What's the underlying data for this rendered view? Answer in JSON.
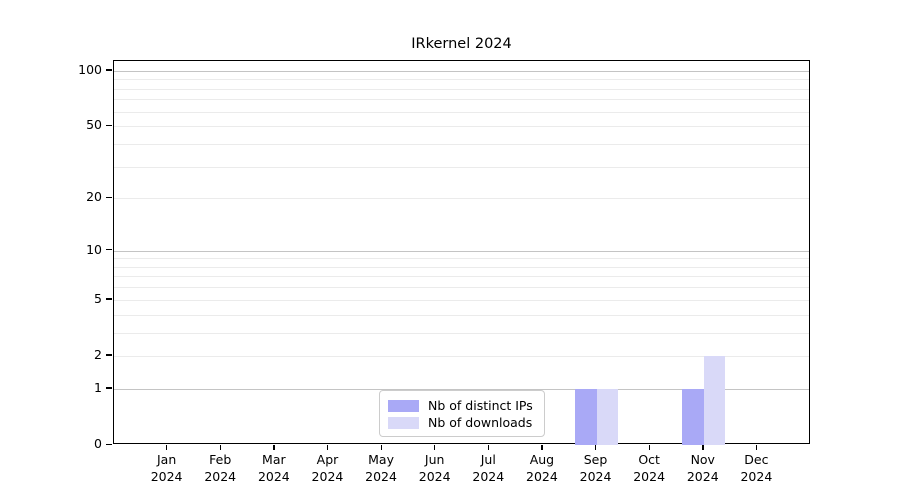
{
  "title": "IRkernel 2024",
  "chart_data": {
    "type": "bar",
    "title": "IRkernel 2024",
    "xlabel": "",
    "ylabel": "",
    "year": "2024",
    "categories": [
      "Jan",
      "Feb",
      "Mar",
      "Apr",
      "May",
      "Jun",
      "Jul",
      "Aug",
      "Sep",
      "Oct",
      "Nov",
      "Dec"
    ],
    "series": [
      {
        "name": "Nb of distinct IPs",
        "color": "#a9a9f6",
        "values": [
          0,
          0,
          0,
          0,
          0,
          0,
          0,
          0,
          1,
          0,
          1,
          0
        ]
      },
      {
        "name": "Nb of downloads",
        "color": "#d9d9f8",
        "values": [
          0,
          0,
          0,
          0,
          0,
          0,
          0,
          0,
          1,
          0,
          2,
          0
        ]
      }
    ],
    "scale": "log1p",
    "ylim": [
      0,
      113
    ],
    "yticks": [
      100,
      50,
      20,
      10,
      5,
      2,
      1,
      0
    ],
    "grid": {
      "orientation": "horizontal",
      "major_values": [
        1,
        10,
        100
      ],
      "minor_values": [
        2,
        3,
        4,
        5,
        6,
        7,
        8,
        9,
        20,
        30,
        40,
        50,
        60,
        70,
        80,
        90
      ],
      "major_color": "#c4c4c4",
      "minor_color": "#ebebeb"
    },
    "legend_position": "lower center",
    "axis_color": "#000000",
    "bar_width_fraction": 0.4
  }
}
